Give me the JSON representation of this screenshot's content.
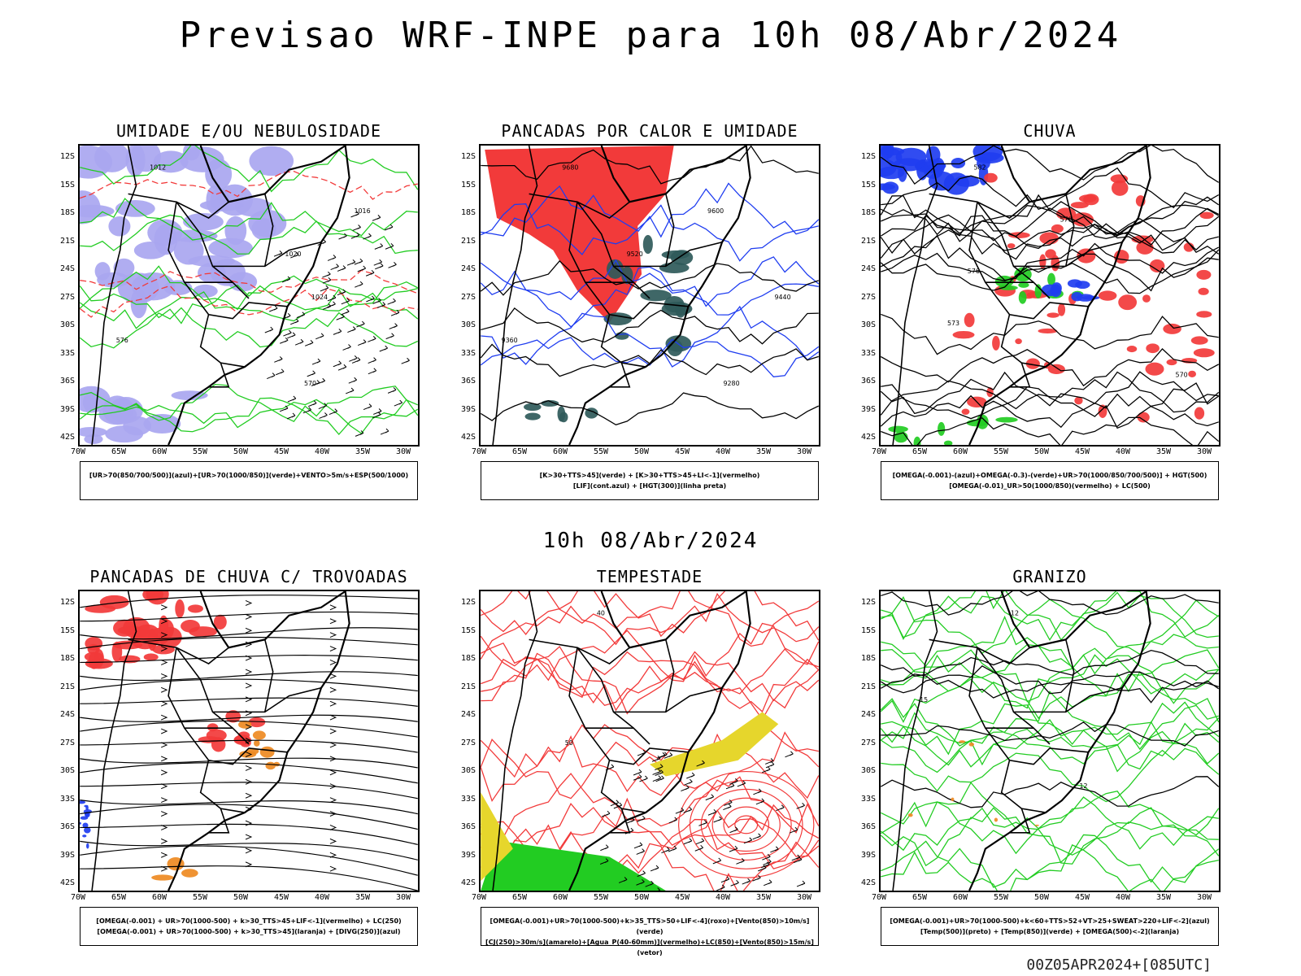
{
  "title": "Previsao WRF-INPE  para 10h 08/Abr/2024",
  "mid_time": "10h 08/Abr/2024",
  "footer": "00Z05APR2024+[085UTC]",
  "axes": {
    "lat_labels": [
      "12S",
      "15S",
      "18S",
      "21S",
      "24S",
      "27S",
      "30S",
      "33S",
      "36S",
      "39S",
      "42S"
    ],
    "lon_labels": [
      "70W",
      "65W",
      "60W",
      "55W",
      "50W",
      "45W",
      "40W",
      "35W",
      "30W"
    ]
  },
  "colors": {
    "red": "#f23a3a",
    "green": "#22cc22",
    "blue": "#1f3df0",
    "lavender": "#a9a6f0",
    "teal": "#2f5a5a",
    "yellow": "#e6d62c",
    "orange": "#ee8a22",
    "black": "#000000"
  },
  "panels": [
    {
      "title": "UMIDADE E/OU NEBULOSIDADE",
      "legend": [
        "[UR>70(850/700/500)](azul)+[UR>70(1000/850)](verde)+VENTO>5m/s+ESP(500/1000)"
      ],
      "contour_labels": [
        "1012",
        "1016",
        "1020",
        "1024",
        "576",
        "570"
      ]
    },
    {
      "title": "PANCADAS POR CALOR E UMIDADE",
      "legend": [
        "[K>30+TTS>45](verde) + [K>30+TTS>45+LI<-1](vermelho)",
        "[LIF](cont.azul) + [HGT(300)](linha preta)"
      ],
      "contour_labels": [
        "9680",
        "9600",
        "9520",
        "9440",
        "9360",
        "9280"
      ]
    },
    {
      "title": "CHUVA",
      "legend": [
        "[OMEGA(-0.001)-(azul)+OMEGA(-0.3)-(verde)+UR>70(1000/850/700/500)] + HGT(500)",
        "[OMEGA(-0.01)_UR>50(1000/850)(vermelho) + LC(500)"
      ],
      "contour_labels": [
        "582",
        "579",
        "576",
        "573",
        "570"
      ]
    },
    {
      "title": "PANCADAS DE CHUVA C/ TROVOADAS",
      "legend": [
        "[OMEGA(-0.001) + UR>70(1000-500) + k>30_TTS>45+LIF<-1](vermelho) + LC(250)",
        "[OMEGA(-0.001) + UR>70(1000-500) + k>30_TTS>45](laranja) + [DIVG(250)](azul)"
      ],
      "contour_labels": []
    },
    {
      "title": "TEMPESTADE",
      "legend": [
        "[OMEGA(-0.001)+UR>70(1000-500)+k>35_TTS>50+LIF<-4](roxo)+[Vento(850)>10m/s](verde)",
        "[CJ(250)>30m/s](amarelo)+[Agua_P(40-60mm)](vermelho)+LC(850)+[Vento(850)>15m/s](vetor)"
      ],
      "contour_labels": [
        "40",
        "50"
      ]
    },
    {
      "title": "GRANIZO",
      "legend": [
        "[OMEGA(-0.001)+UR>70(1000-500)+k<60+TTS>52+VT>25+SWEAT>220+LIF<-2](azul)",
        "[Temp(500)](preto) + [Temp(850)](verde) + [OMEGA(500)<-2](laranja)"
      ],
      "contour_labels": [
        "-12",
        "-15",
        "12"
      ]
    }
  ]
}
